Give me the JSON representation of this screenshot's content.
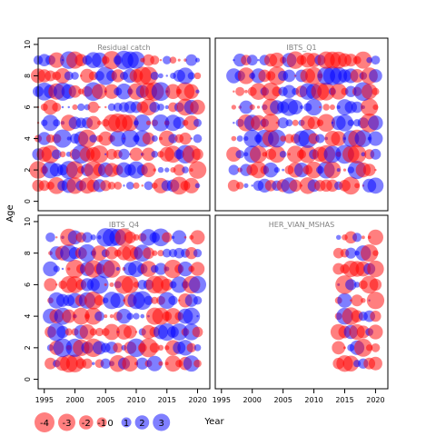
{
  "chart_data": {
    "type": "scatter",
    "subtype": "bubble-residuals",
    "xlabel": "Year",
    "ylabel": "Age",
    "xlim": [
      1994,
      2022
    ],
    "ylim": [
      -0.6,
      10.4
    ],
    "x_ticks": [
      1995,
      2000,
      2005,
      2010,
      2015,
      2020
    ],
    "y_ticks": [
      0,
      2,
      4,
      6,
      8,
      10
    ],
    "colors": {
      "negative": "#ff0000",
      "positive": "#0000ff",
      "panel_border": "#000000",
      "panel_title": "#808080"
    },
    "legend": {
      "placement": "bottom-left",
      "values": [
        -4,
        -3,
        -2,
        -1,
        0,
        1,
        2,
        3
      ],
      "labels": [
        "-4",
        "-3",
        "-2",
        "-1",
        "0",
        "1",
        "2",
        "3"
      ]
    },
    "panels": [
      {
        "name": "Residual catch",
        "years": [
          1994,
          2020
        ],
        "ages": [
          1,
          9
        ],
        "seed": 11,
        "residual_grid_note": "small"
      },
      {
        "name": "IBTS_Q1",
        "years": [
          1997,
          2020
        ],
        "ages": [
          1,
          9
        ],
        "seed": 23
      },
      {
        "name": "IBTS_Q4",
        "years": [
          1996,
          2020
        ],
        "ages": [
          1,
          9
        ],
        "seed": 37
      },
      {
        "name": "HER_VIAN_MSHAS",
        "years": [
          2014,
          2020
        ],
        "ages": [
          1,
          9
        ],
        "seed": 53
      }
    ]
  }
}
